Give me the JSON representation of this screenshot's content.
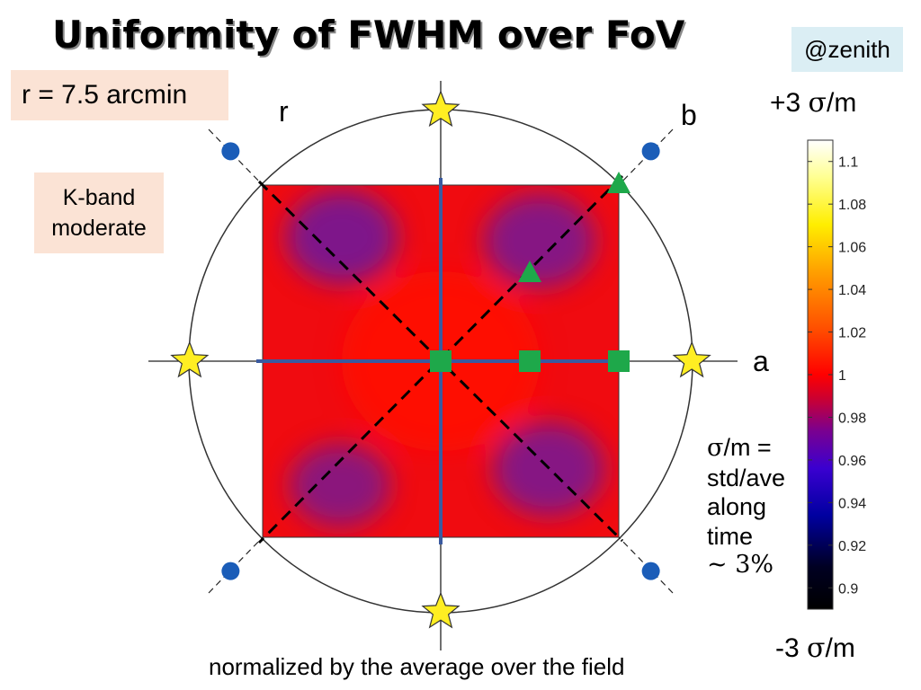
{
  "title": "Uniformity of FWHM over FoV",
  "tag": "@zenith",
  "radius_label": "r = 7.5 arcmin",
  "band_label": {
    "line1": "K-band",
    "line2": "moderate"
  },
  "axis_labels": {
    "r": "r",
    "b": "b",
    "a": "a"
  },
  "colorbar": {
    "top_label_prefix": "+3 ",
    "bottom_label_prefix": "-3 ",
    "sigma_symbol": "σ",
    "per_m": "/m",
    "min": 0.89,
    "max": 1.11,
    "ticks": [
      "1.1",
      "1.08",
      "1.06",
      "1.04",
      "1.02",
      "1",
      "0.98",
      "0.96",
      "0.94",
      "0.92",
      "0.9"
    ]
  },
  "note": {
    "line1_symbol": "σ",
    "line1_rest": "/m =",
    "line2": "std/ave",
    "line3": "along",
    "line4": "time",
    "line5": "~ 3%"
  },
  "footer": "normalized by the average over the field",
  "chart_data": {
    "type": "heatmap",
    "field_extent": [
      -1,
      1
    ],
    "value_range": [
      0.89,
      1.11
    ],
    "colormap": "hot-blue",
    "center_value": 1.0,
    "corner_low_value": 0.965,
    "circle_radius": 1.414,
    "markers": {
      "stars": [
        [
          0,
          1.41
        ],
        [
          -1.41,
          0
        ],
        [
          1.41,
          0
        ],
        [
          0,
          -1.41
        ]
      ],
      "dots": [
        [
          -1.18,
          1.18
        ],
        [
          1.18,
          1.18
        ],
        [
          -1.18,
          -1.18
        ],
        [
          1.18,
          -1.18
        ]
      ],
      "squares": [
        [
          0,
          0
        ],
        [
          0.5,
          0
        ],
        [
          1.0,
          0
        ]
      ],
      "triangles": [
        [
          0.5,
          0.5
        ],
        [
          1.0,
          1.0
        ]
      ]
    },
    "colors": {
      "star_fill": "#ffee22",
      "dot_fill": "#1b5db8",
      "square_fill": "#1ea84a",
      "triangle_fill": "#1ea84a",
      "axis_line": "#3a5aa0"
    }
  }
}
